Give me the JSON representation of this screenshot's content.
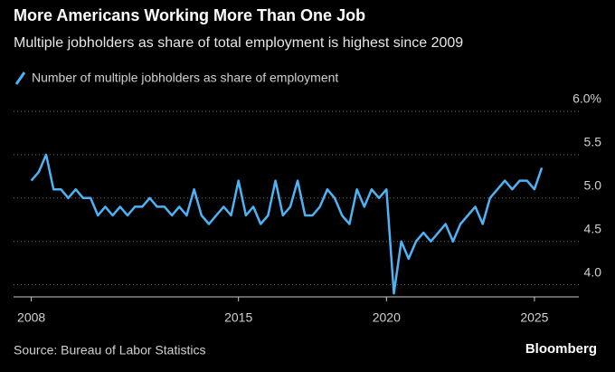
{
  "chart_data": {
    "type": "line",
    "title": "More Americans Working More Than One Job",
    "subtitle": "Multiple jobholders as share of total employment is highest since 2009",
    "source": "Source: Bureau of Labor Statistics",
    "brand": "Bloomberg",
    "x": [
      2008,
      2008.25,
      2008.5,
      2008.75,
      2009,
      2009.25,
      2009.5,
      2009.75,
      2010,
      2010.25,
      2010.5,
      2010.75,
      2011,
      2011.25,
      2011.5,
      2011.75,
      2012,
      2012.25,
      2012.5,
      2012.75,
      2013,
      2013.25,
      2013.5,
      2013.75,
      2014,
      2014.25,
      2014.5,
      2014.75,
      2015,
      2015.25,
      2015.5,
      2015.75,
      2016,
      2016.25,
      2016.5,
      2016.75,
      2017,
      2017.25,
      2017.5,
      2017.75,
      2018,
      2018.25,
      2018.5,
      2018.75,
      2019,
      2019.25,
      2019.5,
      2019.75,
      2020,
      2020.25,
      2020.5,
      2020.75,
      2021,
      2021.25,
      2021.5,
      2021.75,
      2022,
      2022.25,
      2022.5,
      2022.75,
      2023,
      2023.25,
      2023.5,
      2023.75,
      2024,
      2024.25,
      2024.5,
      2024.75,
      2025,
      2025.25
    ],
    "series": [
      {
        "name": "Number of multiple jobholders as share of employment",
        "color": "#4db3f5",
        "values": [
          5.2,
          5.3,
          5.5,
          5.1,
          5.1,
          5.0,
          5.1,
          5.0,
          5.0,
          4.8,
          4.9,
          4.8,
          4.9,
          4.8,
          4.9,
          4.9,
          5.0,
          4.9,
          4.9,
          4.8,
          4.9,
          4.8,
          5.1,
          4.8,
          4.7,
          4.8,
          4.9,
          4.8,
          5.2,
          4.8,
          4.9,
          4.7,
          4.8,
          5.2,
          4.8,
          4.9,
          5.2,
          4.8,
          4.8,
          4.9,
          5.1,
          5.0,
          4.8,
          4.7,
          5.1,
          4.9,
          5.1,
          5.0,
          5.1,
          3.9,
          4.5,
          4.3,
          4.5,
          4.6,
          4.5,
          4.6,
          4.7,
          4.5,
          4.7,
          4.8,
          4.9,
          4.7,
          5.0,
          5.1,
          5.2,
          5.1,
          5.2,
          5.2,
          5.1,
          5.35
        ]
      }
    ],
    "xlim": [
      2007.4,
      2026.5
    ],
    "xticks": [
      2008,
      2015,
      2020,
      2025
    ],
    "ylim": [
      3.86,
      6.0
    ],
    "yticks": [
      {
        "value": 4,
        "label": "4.0"
      },
      4.5,
      {
        "value": 5,
        "label": "5.0"
      },
      5.5,
      {
        "value": 6,
        "label": "6.0%"
      }
    ],
    "grid": true
  }
}
